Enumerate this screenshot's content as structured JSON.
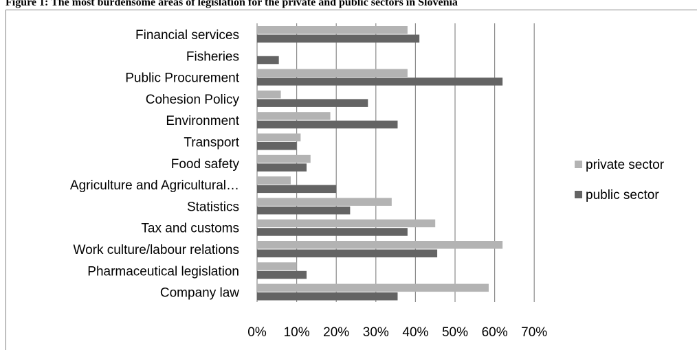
{
  "caption": "Figure 1: The most burdensome areas of legislation for the private and public sectors in Slovenia",
  "chart_data": {
    "type": "bar",
    "orientation": "horizontal",
    "categories": [
      "Financial services",
      "Fisheries",
      "Public Procurement",
      "Cohesion Policy",
      "Environment",
      "Transport",
      "Food safety",
      "Agriculture and Agricultural…",
      "Statistics",
      "Tax and customs",
      "Work culture/labour relations",
      "Pharmaceutical legislation",
      "Company law"
    ],
    "series": [
      {
        "name": "private sector",
        "color": "#b3b3b3",
        "values": [
          38,
          0,
          38,
          6,
          18.5,
          11,
          13.5,
          8.5,
          34,
          45,
          62,
          10,
          58.5
        ]
      },
      {
        "name": "public sector",
        "color": "#646464",
        "values": [
          41,
          5.5,
          62,
          28,
          35.5,
          10,
          12.5,
          20,
          23.5,
          38,
          45.5,
          12.5,
          35.5
        ]
      }
    ],
    "xticks": [
      "0%",
      "10%",
      "20%",
      "30%",
      "40%",
      "50%",
      "60%",
      "70%"
    ],
    "xlim": [
      0,
      70
    ],
    "grid": true,
    "legend_position": "right"
  }
}
